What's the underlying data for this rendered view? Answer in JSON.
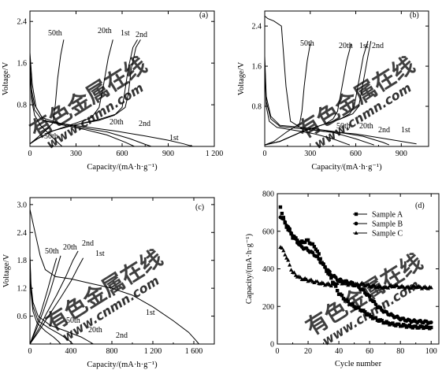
{
  "figure": {
    "watermark": {
      "cn": "有色金属在线",
      "url": "www.cnmn.com",
      "cn_color": "#c9c9c9",
      "url_color": "#d4d4d4"
    }
  },
  "chart_data": [
    {
      "panel": "(a)",
      "type": "line",
      "xlabel": "Capacity/(mA·h·g⁻¹)",
      "ylabel": "Voltage/V",
      "xlim": [
        0,
        1200
      ],
      "ylim": [
        0,
        2.6
      ],
      "xticks": [
        0,
        300,
        600,
        900,
        1200
      ],
      "xticklabels": [
        "0",
        "300",
        "600",
        "900",
        "1 200"
      ],
      "yticks": [
        0.8,
        1.6,
        2.4
      ],
      "yticklabels": [
        "0.8",
        "1.6",
        "2.4"
      ],
      "series": [
        {
          "name": "1st",
          "phase": "discharge",
          "x": [
            0,
            15,
            40,
            90,
            200,
            350,
            550,
            750,
            900,
            1000,
            1060
          ],
          "y": [
            1.8,
            1.2,
            0.75,
            0.5,
            0.44,
            0.38,
            0.3,
            0.2,
            0.12,
            0.05,
            0.0
          ]
        },
        {
          "name": "2nd",
          "phase": "discharge",
          "x": [
            0,
            10,
            30,
            80,
            200,
            350,
            500,
            650,
            750,
            790
          ],
          "y": [
            1.7,
            1.1,
            0.8,
            0.55,
            0.44,
            0.35,
            0.28,
            0.15,
            0.04,
            0.0
          ]
        },
        {
          "name": "20th",
          "phase": "discharge",
          "x": [
            0,
            10,
            30,
            80,
            200,
            350,
            500,
            620,
            680
          ],
          "y": [
            1.6,
            1.0,
            0.7,
            0.5,
            0.42,
            0.33,
            0.22,
            0.08,
            0.0
          ]
        },
        {
          "name": "50th",
          "phase": "discharge",
          "x": [
            0,
            10,
            30,
            70,
            130,
            180,
            210
          ],
          "y": [
            1.5,
            0.9,
            0.6,
            0.4,
            0.22,
            0.08,
            0.0
          ]
        },
        {
          "name": "1st",
          "phase": "charge",
          "x": [
            0,
            50,
            150,
            300,
            450,
            550,
            600,
            615,
            640,
            670,
            700
          ],
          "y": [
            0.05,
            0.15,
            0.3,
            0.42,
            0.5,
            0.6,
            0.75,
            1.0,
            1.5,
            1.9,
            2.05
          ]
        },
        {
          "name": "2nd",
          "phase": "charge",
          "x": [
            0,
            50,
            150,
            300,
            450,
            560,
            620,
            640,
            660,
            690,
            720
          ],
          "y": [
            0.05,
            0.15,
            0.3,
            0.42,
            0.52,
            0.62,
            0.75,
            1.0,
            1.5,
            1.9,
            2.05
          ]
        },
        {
          "name": "20th",
          "phase": "charge",
          "x": [
            0,
            50,
            150,
            300,
            400,
            450,
            480,
            510,
            540
          ],
          "y": [
            0.05,
            0.15,
            0.3,
            0.45,
            0.55,
            0.75,
            1.2,
            1.7,
            2.05
          ]
        },
        {
          "name": "50th",
          "phase": "charge",
          "x": [
            0,
            40,
            100,
            150,
            165,
            180,
            200,
            220
          ],
          "y": [
            0.05,
            0.15,
            0.3,
            0.45,
            0.8,
            1.3,
            1.75,
            2.05
          ]
        }
      ]
    },
    {
      "panel": "(b)",
      "type": "line",
      "xlabel": "Capacity/(mA·h·g⁻¹)",
      "ylabel": "Voltage/V",
      "xlim": [
        0,
        1080
      ],
      "ylim": [
        0,
        2.7
      ],
      "xticks": [
        0,
        300,
        600,
        900
      ],
      "xticklabels": [
        "0",
        "300",
        "600",
        "900"
      ],
      "yticks": [
        0.8,
        1.6,
        2.4
      ],
      "yticklabels": [
        "0.8",
        "1.6",
        "2.4"
      ],
      "series": [
        {
          "name": "1st",
          "phase": "discharge",
          "x": [
            0,
            20,
            60,
            110,
            140,
            170,
            250,
            400,
            600,
            800,
            1000
          ],
          "y": [
            2.6,
            2.55,
            2.5,
            2.4,
            1.2,
            0.5,
            0.35,
            0.3,
            0.25,
            0.15,
            0.05
          ]
        },
        {
          "name": "2nd",
          "phase": "discharge",
          "x": [
            0,
            10,
            40,
            100,
            250,
            450,
            650,
            780,
            820
          ],
          "y": [
            1.8,
            1.0,
            0.6,
            0.42,
            0.38,
            0.3,
            0.2,
            0.08,
            0.03
          ]
        },
        {
          "name": "20th",
          "phase": "discharge",
          "x": [
            0,
            10,
            40,
            100,
            250,
            450,
            600,
            700,
            720
          ],
          "y": [
            1.7,
            0.9,
            0.55,
            0.4,
            0.35,
            0.28,
            0.15,
            0.05,
            0.03
          ]
        },
        {
          "name": "50th",
          "phase": "discharge",
          "x": [
            0,
            10,
            30,
            80,
            200,
            330,
            450,
            540,
            560
          ],
          "y": [
            1.6,
            0.8,
            0.5,
            0.38,
            0.32,
            0.25,
            0.15,
            0.05,
            0.03
          ]
        },
        {
          "name": "1st",
          "phase": "charge",
          "x": [
            0,
            100,
            250,
            400,
            500,
            560,
            590,
            620,
            650,
            680
          ],
          "y": [
            0.03,
            0.1,
            0.3,
            0.45,
            0.55,
            0.65,
            0.8,
            1.3,
            1.8,
            2.1
          ]
        },
        {
          "name": "2nd",
          "phase": "charge",
          "x": [
            0,
            100,
            250,
            400,
            500,
            580,
            620,
            650,
            680,
            700
          ],
          "y": [
            0.03,
            0.1,
            0.3,
            0.45,
            0.55,
            0.65,
            0.8,
            1.3,
            1.8,
            2.1
          ]
        },
        {
          "name": "20th",
          "phase": "charge",
          "x": [
            0,
            100,
            250,
            400,
            450,
            480,
            510,
            540,
            570
          ],
          "y": [
            0.03,
            0.1,
            0.3,
            0.45,
            0.55,
            0.7,
            1.2,
            1.7,
            2.05
          ]
        },
        {
          "name": "50th",
          "phase": "charge",
          "x": [
            0,
            60,
            150,
            230,
            245,
            260,
            280,
            300
          ],
          "y": [
            0.03,
            0.1,
            0.3,
            0.45,
            0.7,
            1.2,
            1.7,
            2.05
          ]
        }
      ]
    },
    {
      "panel": "(c)",
      "type": "line",
      "xlabel": "Capacity/(mA·h·g⁻¹)",
      "ylabel": "Voltage/V",
      "xlim": [
        0,
        1800
      ],
      "ylim": [
        0,
        3.15
      ],
      "xticks": [
        0,
        400,
        800,
        1200,
        1600
      ],
      "xticklabels": [
        "0",
        "400",
        "800",
        "1 200",
        "1 600"
      ],
      "yticks": [
        0.6,
        1.2,
        1.8,
        2.4,
        3.0
      ],
      "yticklabels": [
        "0.6",
        "1.2",
        "1.8",
        "2.4",
        "3.0"
      ],
      "series": [
        {
          "name": "1st",
          "phase": "discharge",
          "x": [
            0,
            20,
            60,
            100,
            150,
            250,
            400,
            600,
            800,
            1000,
            1200,
            1400,
            1550,
            1620,
            1650
          ],
          "y": [
            2.9,
            2.7,
            2.3,
            1.9,
            1.6,
            1.45,
            1.4,
            1.3,
            1.2,
            1.05,
            0.8,
            0.5,
            0.25,
            0.08,
            0.0
          ]
        },
        {
          "name": "2nd",
          "phase": "discharge",
          "x": [
            0,
            10,
            30,
            80,
            200,
            350,
            500,
            580,
            620
          ],
          "y": [
            1.9,
            1.3,
            0.9,
            0.6,
            0.4,
            0.28,
            0.15,
            0.05,
            0.0
          ]
        },
        {
          "name": "20th",
          "phase": "discharge",
          "x": [
            0,
            10,
            30,
            80,
            180,
            300,
            380,
            420
          ],
          "y": [
            1.85,
            1.2,
            0.8,
            0.5,
            0.35,
            0.2,
            0.08,
            0.0
          ]
        },
        {
          "name": "50th",
          "phase": "discharge",
          "x": [
            0,
            10,
            30,
            70,
            150,
            230,
            280,
            300
          ],
          "y": [
            1.8,
            1.1,
            0.7,
            0.45,
            0.28,
            0.15,
            0.05,
            0.0
          ]
        },
        {
          "name": "1st",
          "phase": "charge",
          "x": [
            0,
            80,
            180,
            300,
            400,
            470,
            520
          ],
          "y": [
            0.0,
            0.25,
            0.6,
            1.0,
            1.35,
            1.65,
            1.85
          ]
        },
        {
          "name": "2nd",
          "phase": "charge",
          "x": [
            0,
            80,
            160,
            260,
            350,
            420,
            470
          ],
          "y": [
            0.0,
            0.3,
            0.65,
            1.05,
            1.45,
            1.8,
            2.0
          ]
        },
        {
          "name": "20th",
          "phase": "charge",
          "x": [
            0,
            60,
            130,
            200,
            260,
            300
          ],
          "y": [
            0.0,
            0.3,
            0.7,
            1.15,
            1.6,
            1.9
          ]
        },
        {
          "name": "50th",
          "phase": "charge",
          "x": [
            0,
            50,
            110,
            170,
            220,
            260
          ],
          "y": [
            0.0,
            0.3,
            0.7,
            1.15,
            1.55,
            1.85
          ]
        }
      ]
    },
    {
      "panel": "(d)",
      "type": "scatter",
      "xlabel": "Cycle number",
      "ylabel": "Capacity/(mA·h·g⁻¹)",
      "xlim": [
        0,
        105
      ],
      "ylim": [
        0,
        800
      ],
      "xticks": [
        0,
        20,
        40,
        60,
        80,
        100
      ],
      "yticks": [
        0,
        200,
        400,
        600,
        800
      ],
      "legend": "top-right",
      "series": [
        {
          "name": "Sample A",
          "marker": "square",
          "x": [
            2,
            5,
            10,
            15,
            20,
            25,
            30,
            35,
            40,
            45,
            50,
            55,
            60,
            65,
            70,
            75,
            80,
            85,
            90,
            95,
            100
          ],
          "y": [
            730,
            640,
            570,
            540,
            550,
            510,
            420,
            350,
            270,
            230,
            200,
            180,
            150,
            130,
            115,
            105,
            100,
            95,
            90,
            90,
            88
          ]
        },
        {
          "name": "Sample B",
          "marker": "circle",
          "x": [
            2,
            5,
            10,
            15,
            20,
            25,
            30,
            35,
            40,
            45,
            50,
            55,
            60,
            65,
            70,
            75,
            80,
            85,
            90,
            95,
            100
          ],
          "y": [
            680,
            650,
            580,
            520,
            500,
            470,
            420,
            370,
            340,
            330,
            320,
            290,
            250,
            200,
            170,
            150,
            135,
            125,
            120,
            118,
            115
          ]
        },
        {
          "name": "Sample C",
          "marker": "triangle",
          "x": [
            2,
            5,
            10,
            15,
            20,
            25,
            30,
            35,
            40,
            45,
            50,
            55,
            60,
            65,
            70,
            75,
            80,
            85,
            90,
            95,
            100
          ],
          "y": [
            520,
            480,
            380,
            350,
            340,
            330,
            320,
            315,
            330,
            320,
            315,
            320,
            310,
            305,
            300,
            310,
            305,
            300,
            305,
            300,
            300
          ]
        }
      ]
    }
  ]
}
